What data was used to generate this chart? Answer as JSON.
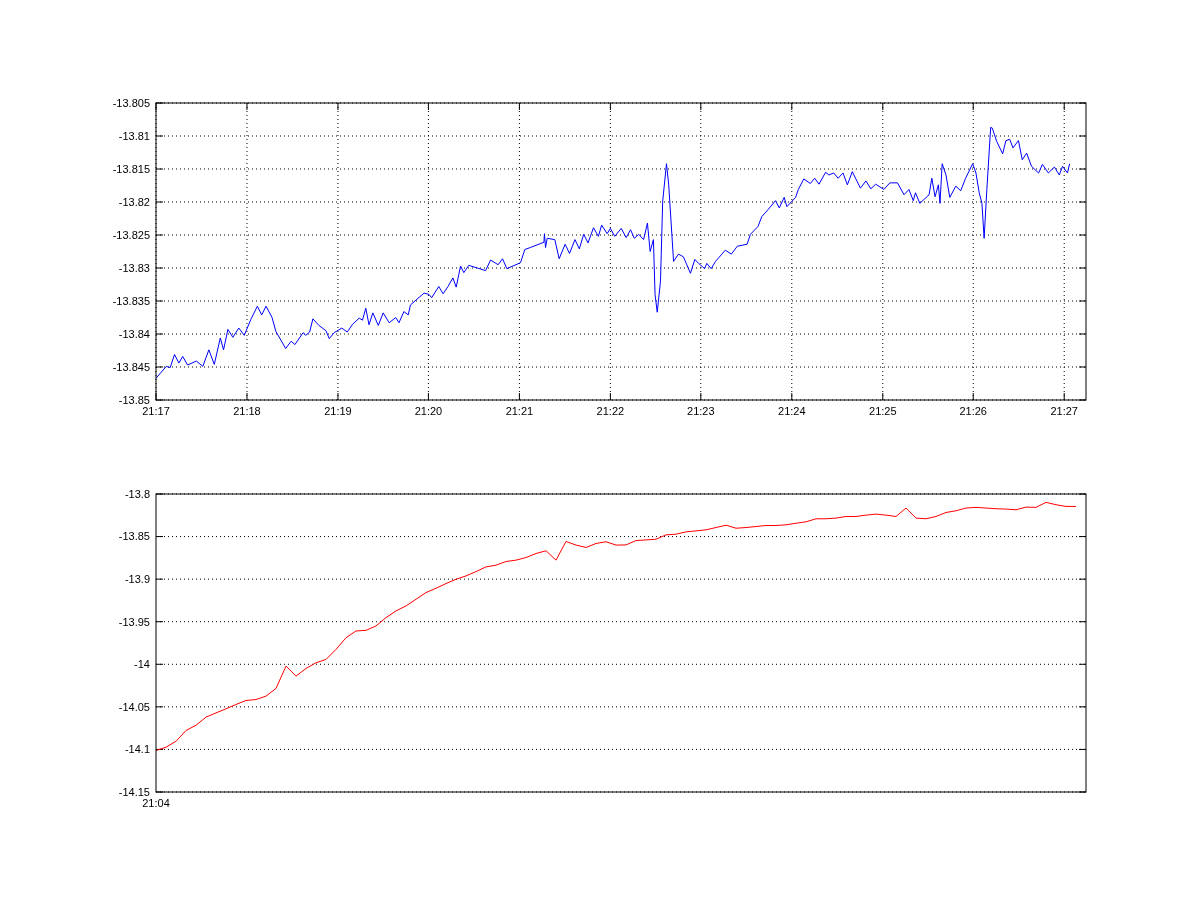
{
  "chart_data": [
    {
      "type": "line",
      "xlim": [
        21.2833,
        21.454
      ],
      "ylim": [
        -13.85,
        -13.805
      ],
      "xticks": [
        {
          "value": 21.2833,
          "label": "21:17"
        },
        {
          "value": 21.3,
          "label": "21:18"
        },
        {
          "value": 21.3167,
          "label": "21:19"
        },
        {
          "value": 21.3333,
          "label": "21:20"
        },
        {
          "value": 21.35,
          "label": "21:21"
        },
        {
          "value": 21.3667,
          "label": "21:22"
        },
        {
          "value": 21.3833,
          "label": "21:23"
        },
        {
          "value": 21.4,
          "label": "21:24"
        },
        {
          "value": 21.4167,
          "label": "21:25"
        },
        {
          "value": 21.4333,
          "label": "21:26"
        },
        {
          "value": 21.45,
          "label": "21:27"
        }
      ],
      "yticks": [
        -13.805,
        -13.81,
        -13.815,
        -13.82,
        -13.825,
        -13.83,
        -13.835,
        -13.84,
        -13.845,
        -13.85
      ],
      "grid": true,
      "series": [
        {
          "color": "#0000ff",
          "x": [
            21.2833,
            21.2852,
            21.2859,
            21.2867,
            21.2875,
            21.2882,
            21.2891,
            21.2907,
            21.2919,
            21.293,
            21.294,
            21.2951,
            21.2957,
            21.2965,
            21.2974,
            21.2985,
            21.2995,
            21.3007,
            21.3019,
            21.3027,
            21.3035,
            21.3046,
            21.3053,
            21.3071,
            21.3081,
            21.3088,
            21.3103,
            21.3108,
            21.3115,
            21.3121,
            21.3132,
            21.3145,
            21.3151,
            21.316,
            21.3174,
            21.3184,
            21.3194,
            21.3206,
            21.3212,
            21.3218,
            21.3224,
            21.3231,
            21.3241,
            21.325,
            21.3261,
            21.3273,
            21.3279,
            21.3288,
            21.3296,
            21.33,
            21.3325,
            21.3334,
            21.3339,
            21.3352,
            21.336,
            21.3369,
            21.3378,
            21.3384,
            21.3392,
            21.3398,
            21.3407,
            21.3423,
            21.3438,
            21.3447,
            21.3461,
            21.3469,
            21.3477,
            21.3502,
            21.351,
            21.352,
            21.3545,
            21.3546,
            21.3548,
            21.3551,
            21.3565,
            21.3573,
            21.3584,
            21.3592,
            21.3602,
            21.361,
            21.3618,
            21.3626,
            21.3636,
            21.3645,
            21.3651,
            21.3661,
            21.3667,
            21.3675,
            21.3687,
            21.3696,
            21.3704,
            21.3711,
            21.3719,
            21.3728,
            21.3735,
            21.374,
            21.3746,
            21.3749,
            21.3753,
            21.3759,
            21.3763,
            21.377,
            21.3774,
            21.3783,
            21.3792,
            21.3801,
            21.3814,
            21.3822,
            21.3829,
            21.384,
            21.3844,
            21.3852,
            21.386,
            21.3878,
            21.3889,
            21.39,
            21.3918,
            21.3924,
            21.3938,
            21.3945,
            21.3956,
            21.397,
            21.3977,
            21.3986,
            21.3991,
            21.4007,
            21.4012,
            21.4022,
            21.4034,
            21.4042,
            21.405,
            21.4062,
            21.4068,
            21.4077,
            21.4085,
            21.4094,
            21.4102,
            21.4111,
            21.4126,
            21.4136,
            21.4145,
            21.4154,
            21.4169,
            21.418,
            21.4194,
            21.4206,
            21.4215,
            21.4223,
            21.4227,
            21.4235,
            21.4252,
            21.4257,
            21.4263,
            21.4269,
            21.4272,
            21.4276,
            21.4283,
            21.429,
            21.4301,
            21.431,
            21.4319,
            21.4332,
            21.4338,
            21.4344,
            21.4349,
            21.4353,
            21.4358,
            21.4365,
            21.4368,
            21.4376,
            21.4387,
            21.4393,
            21.44,
            21.4406,
            21.4416,
            21.4423,
            21.4431,
            21.444,
            21.4453,
            21.446,
            21.4471,
            21.4482,
            21.4491,
            21.4497,
            21.4506,
            21.451
          ],
          "values": [
            -13.8467,
            -13.8449,
            -13.8451,
            -13.8431,
            -13.8444,
            -13.8434,
            -13.8447,
            -13.8441,
            -13.8449,
            -13.8424,
            -13.8446,
            -13.8406,
            -13.8424,
            -13.8393,
            -13.8405,
            -13.8391,
            -13.8402,
            -13.8378,
            -13.8358,
            -13.8371,
            -13.8358,
            -13.8375,
            -13.8396,
            -13.8422,
            -13.8411,
            -13.8416,
            -13.8398,
            -13.8402,
            -13.8397,
            -13.8377,
            -13.8387,
            -13.8395,
            -13.8407,
            -13.8398,
            -13.8391,
            -13.8397,
            -13.8385,
            -13.8376,
            -13.8379,
            -13.8361,
            -13.8386,
            -13.8368,
            -13.8387,
            -13.8368,
            -13.8383,
            -13.8375,
            -13.8383,
            -13.8366,
            -13.8371,
            -13.8356,
            -13.8338,
            -13.834,
            -13.8345,
            -13.8328,
            -13.8339,
            -13.8328,
            -13.8315,
            -13.8329,
            -13.8297,
            -13.8307,
            -13.8296,
            -13.83,
            -13.8304,
            -13.8288,
            -13.8295,
            -13.8286,
            -13.8301,
            -13.8292,
            -13.8272,
            -13.8269,
            -13.8261,
            -13.8248,
            -13.8269,
            -13.8255,
            -13.8257,
            -13.8286,
            -13.8264,
            -13.8278,
            -13.8257,
            -13.8271,
            -13.8249,
            -13.8262,
            -13.8239,
            -13.8252,
            -13.8235,
            -13.8248,
            -13.824,
            -13.8252,
            -13.824,
            -13.8254,
            -13.8242,
            -13.8255,
            -13.8249,
            -13.8257,
            -13.8232,
            -13.8275,
            -13.8257,
            -13.834,
            -13.8367,
            -13.832,
            -13.8199,
            -13.8142,
            -13.8173,
            -13.829,
            -13.8279,
            -13.8283,
            -13.8308,
            -13.8287,
            -13.8293,
            -13.8301,
            -13.8293,
            -13.8301,
            -13.829,
            -13.8273,
            -13.8279,
            -13.8267,
            -13.8264,
            -13.8249,
            -13.8237,
            -13.8222,
            -13.8212,
            -13.8198,
            -13.8209,
            -13.8193,
            -13.8207,
            -13.8193,
            -13.8181,
            -13.8165,
            -13.8172,
            -13.8164,
            -13.8173,
            -13.8155,
            -13.8159,
            -13.8156,
            -13.8164,
            -13.8156,
            -13.8174,
            -13.8154,
            -13.8179,
            -13.8168,
            -13.818,
            -13.8173,
            -13.8181,
            -13.8171,
            -13.8171,
            -13.8189,
            -13.8181,
            -13.8198,
            -13.8186,
            -13.8202,
            -13.8189,
            -13.8164,
            -13.8192,
            -13.8174,
            -13.8202,
            -13.8142,
            -13.8159,
            -13.8193,
            -13.8176,
            -13.8183,
            -13.8164,
            -13.8142,
            -13.8156,
            -13.8186,
            -13.8202,
            -13.8255,
            -13.8181,
            -13.8087,
            -13.8088,
            -13.8108,
            -13.8127,
            -13.8107,
            -13.8105,
            -13.8118,
            -13.8107,
            -13.8136,
            -13.8126,
            -13.8146,
            -13.8156,
            -13.8143,
            -13.8156,
            -13.8147,
            -13.8159,
            -13.8146,
            -13.8156,
            -13.8142
          ]
        }
      ]
    },
    {
      "type": "line",
      "ylim": [
        -14.15,
        -13.8
      ],
      "categories": [
        "21:04",
        null,
        null,
        null,
        null,
        null,
        null,
        null,
        null,
        null,
        null,
        null,
        null,
        null,
        null,
        null,
        null,
        null,
        null,
        null,
        null,
        null,
        null,
        null,
        null,
        null,
        null,
        null,
        null,
        null,
        null,
        null,
        null,
        null,
        null,
        null,
        null,
        null,
        null,
        null,
        null,
        null,
        null,
        null,
        null,
        null,
        null,
        null,
        null,
        null,
        null,
        null,
        null,
        null,
        null,
        null,
        null,
        null,
        null,
        null,
        null,
        null,
        null,
        null,
        null,
        null,
        null,
        null,
        null,
        null,
        null,
        null,
        null,
        null,
        null,
        null,
        null,
        null,
        null,
        null,
        null,
        null,
        null,
        null,
        null,
        null,
        null,
        null,
        null,
        null,
        null,
        null,
        null,
        null
      ],
      "yticks": [
        -13.8,
        -13.85,
        -13.9,
        -13.95,
        -14,
        -14.05,
        -14.1,
        -14.15
      ],
      "grid": "y",
      "series": [
        {
          "color": "#ff0000",
          "values": [
            -14.1013,
            -14.0974,
            -14.0904,
            -14.0778,
            -14.0716,
            -14.0621,
            -14.0571,
            -14.0523,
            -14.0472,
            -14.0425,
            -14.0414,
            -14.0374,
            -14.0284,
            -14.0021,
            -14.0139,
            -14.0049,
            -13.9982,
            -13.9943,
            -13.9825,
            -13.9688,
            -13.9609,
            -13.9601,
            -13.955,
            -13.9452,
            -13.9373,
            -13.9315,
            -13.9236,
            -13.9158,
            -13.9107,
            -13.9052,
            -13.9001,
            -13.8962,
            -13.8911,
            -13.8856,
            -13.8836,
            -13.8793,
            -13.8777,
            -13.8746,
            -13.8699,
            -13.8667,
            -13.8777,
            -13.8557,
            -13.86,
            -13.8628,
            -13.8581,
            -13.8561,
            -13.86,
            -13.8598,
            -13.8547,
            -13.8539,
            -13.8531,
            -13.848,
            -13.8472,
            -13.8445,
            -13.8433,
            -13.8421,
            -13.8394,
            -13.8366,
            -13.8402,
            -13.8394,
            -13.8382,
            -13.837,
            -13.837,
            -13.8362,
            -13.8343,
            -13.8327,
            -13.8291,
            -13.8291,
            -13.8283,
            -13.8264,
            -13.8264,
            -13.8248,
            -13.8236,
            -13.8248,
            -13.8264,
            -13.8165,
            -13.8283,
            -13.8291,
            -13.8264,
            -13.8217,
            -13.8197,
            -13.8165,
            -13.8157,
            -13.8165,
            -13.8173,
            -13.8177,
            -13.8185,
            -13.8154,
            -13.8157,
            -13.8098,
            -13.8126,
            -13.8146,
            -13.8146,
            null
          ]
        }
      ]
    }
  ]
}
